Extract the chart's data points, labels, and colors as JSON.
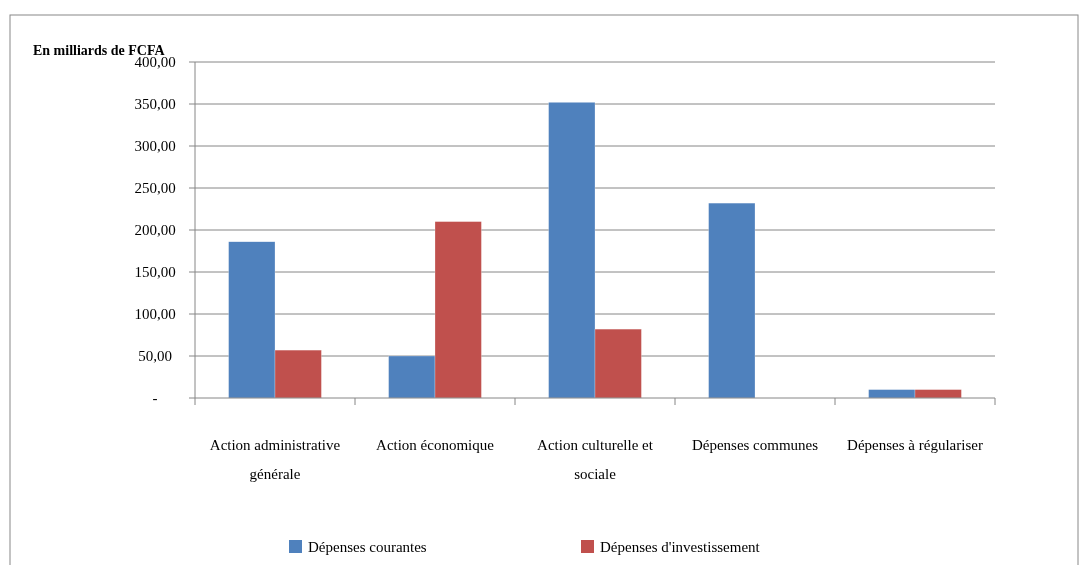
{
  "chart_data": {
    "type": "bar",
    "ylabel": "En milliards de FCFA",
    "categories": [
      "Action administrative générale",
      "Action économique",
      "Action culturelle et sociale",
      "Dépenses communes",
      "Dépenses à régulariser"
    ],
    "series": [
      {
        "name": "Dépenses courantes",
        "color": "#4f81bd",
        "values": [
          186,
          50,
          352,
          232,
          10
        ]
      },
      {
        "name": "Dépenses d'investissement",
        "color": "#c0504d",
        "values": [
          57,
          210,
          82,
          0,
          10
        ]
      }
    ],
    "ylim": [
      0,
      400
    ],
    "yticks": [
      {
        "value": 0,
        "label": "-"
      },
      {
        "value": 50,
        "label": "50,00"
      },
      {
        "value": 100,
        "label": "100,00"
      },
      {
        "value": 150,
        "label": "150,00"
      },
      {
        "value": 200,
        "label": "200,00"
      },
      {
        "value": 250,
        "label": "250,00"
      },
      {
        "value": 300,
        "label": "300,00"
      },
      {
        "value": 350,
        "label": "350,00"
      },
      {
        "value": 400,
        "label": "400,00"
      }
    ],
    "grid": "y",
    "legend": "bottom"
  }
}
